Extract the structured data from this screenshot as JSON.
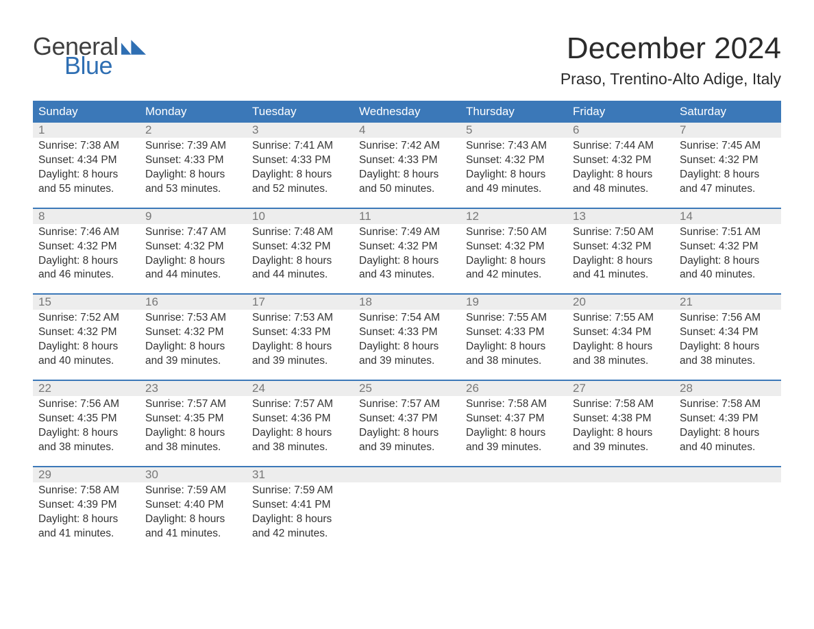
{
  "brand": {
    "word1": "General",
    "word2": "Blue",
    "primary_color": "#2f6fb3",
    "text_color": "#3f3f3f"
  },
  "title": "December 2024",
  "location": "Praso, Trentino-Alto Adige, Italy",
  "colors": {
    "header_bg": "#3b78b8",
    "header_fg": "#ffffff",
    "band_bg": "#ededed",
    "daynum_fg": "#777777",
    "body_fg": "#333333",
    "rule": "#3b78b8"
  },
  "typography": {
    "title_pt": 44,
    "location_pt": 23,
    "dayhead_pt": 17,
    "daynum_pt": 17,
    "body_pt": 15.5,
    "logo_pt": 36
  },
  "dayheads": [
    "Sunday",
    "Monday",
    "Tuesday",
    "Wednesday",
    "Thursday",
    "Friday",
    "Saturday"
  ],
  "weeks": [
    [
      {
        "n": "1",
        "sunrise": "7:38 AM",
        "sunset": "4:34 PM",
        "dl1": "Daylight: 8 hours",
        "dl2": "and 55 minutes."
      },
      {
        "n": "2",
        "sunrise": "7:39 AM",
        "sunset": "4:33 PM",
        "dl1": "Daylight: 8 hours",
        "dl2": "and 53 minutes."
      },
      {
        "n": "3",
        "sunrise": "7:41 AM",
        "sunset": "4:33 PM",
        "dl1": "Daylight: 8 hours",
        "dl2": "and 52 minutes."
      },
      {
        "n": "4",
        "sunrise": "7:42 AM",
        "sunset": "4:33 PM",
        "dl1": "Daylight: 8 hours",
        "dl2": "and 50 minutes."
      },
      {
        "n": "5",
        "sunrise": "7:43 AM",
        "sunset": "4:32 PM",
        "dl1": "Daylight: 8 hours",
        "dl2": "and 49 minutes."
      },
      {
        "n": "6",
        "sunrise": "7:44 AM",
        "sunset": "4:32 PM",
        "dl1": "Daylight: 8 hours",
        "dl2": "and 48 minutes."
      },
      {
        "n": "7",
        "sunrise": "7:45 AM",
        "sunset": "4:32 PM",
        "dl1": "Daylight: 8 hours",
        "dl2": "and 47 minutes."
      }
    ],
    [
      {
        "n": "8",
        "sunrise": "7:46 AM",
        "sunset": "4:32 PM",
        "dl1": "Daylight: 8 hours",
        "dl2": "and 46 minutes."
      },
      {
        "n": "9",
        "sunrise": "7:47 AM",
        "sunset": "4:32 PM",
        "dl1": "Daylight: 8 hours",
        "dl2": "and 44 minutes."
      },
      {
        "n": "10",
        "sunrise": "7:48 AM",
        "sunset": "4:32 PM",
        "dl1": "Daylight: 8 hours",
        "dl2": "and 44 minutes."
      },
      {
        "n": "11",
        "sunrise": "7:49 AM",
        "sunset": "4:32 PM",
        "dl1": "Daylight: 8 hours",
        "dl2": "and 43 minutes."
      },
      {
        "n": "12",
        "sunrise": "7:50 AM",
        "sunset": "4:32 PM",
        "dl1": "Daylight: 8 hours",
        "dl2": "and 42 minutes."
      },
      {
        "n": "13",
        "sunrise": "7:50 AM",
        "sunset": "4:32 PM",
        "dl1": "Daylight: 8 hours",
        "dl2": "and 41 minutes."
      },
      {
        "n": "14",
        "sunrise": "7:51 AM",
        "sunset": "4:32 PM",
        "dl1": "Daylight: 8 hours",
        "dl2": "and 40 minutes."
      }
    ],
    [
      {
        "n": "15",
        "sunrise": "7:52 AM",
        "sunset": "4:32 PM",
        "dl1": "Daylight: 8 hours",
        "dl2": "and 40 minutes."
      },
      {
        "n": "16",
        "sunrise": "7:53 AM",
        "sunset": "4:32 PM",
        "dl1": "Daylight: 8 hours",
        "dl2": "and 39 minutes."
      },
      {
        "n": "17",
        "sunrise": "7:53 AM",
        "sunset": "4:33 PM",
        "dl1": "Daylight: 8 hours",
        "dl2": "and 39 minutes."
      },
      {
        "n": "18",
        "sunrise": "7:54 AM",
        "sunset": "4:33 PM",
        "dl1": "Daylight: 8 hours",
        "dl2": "and 39 minutes."
      },
      {
        "n": "19",
        "sunrise": "7:55 AM",
        "sunset": "4:33 PM",
        "dl1": "Daylight: 8 hours",
        "dl2": "and 38 minutes."
      },
      {
        "n": "20",
        "sunrise": "7:55 AM",
        "sunset": "4:34 PM",
        "dl1": "Daylight: 8 hours",
        "dl2": "and 38 minutes."
      },
      {
        "n": "21",
        "sunrise": "7:56 AM",
        "sunset": "4:34 PM",
        "dl1": "Daylight: 8 hours",
        "dl2": "and 38 minutes."
      }
    ],
    [
      {
        "n": "22",
        "sunrise": "7:56 AM",
        "sunset": "4:35 PM",
        "dl1": "Daylight: 8 hours",
        "dl2": "and 38 minutes."
      },
      {
        "n": "23",
        "sunrise": "7:57 AM",
        "sunset": "4:35 PM",
        "dl1": "Daylight: 8 hours",
        "dl2": "and 38 minutes."
      },
      {
        "n": "24",
        "sunrise": "7:57 AM",
        "sunset": "4:36 PM",
        "dl1": "Daylight: 8 hours",
        "dl2": "and 38 minutes."
      },
      {
        "n": "25",
        "sunrise": "7:57 AM",
        "sunset": "4:37 PM",
        "dl1": "Daylight: 8 hours",
        "dl2": "and 39 minutes."
      },
      {
        "n": "26",
        "sunrise": "7:58 AM",
        "sunset": "4:37 PM",
        "dl1": "Daylight: 8 hours",
        "dl2": "and 39 minutes."
      },
      {
        "n": "27",
        "sunrise": "7:58 AM",
        "sunset": "4:38 PM",
        "dl1": "Daylight: 8 hours",
        "dl2": "and 39 minutes."
      },
      {
        "n": "28",
        "sunrise": "7:58 AM",
        "sunset": "4:39 PM",
        "dl1": "Daylight: 8 hours",
        "dl2": "and 40 minutes."
      }
    ],
    [
      {
        "n": "29",
        "sunrise": "7:58 AM",
        "sunset": "4:39 PM",
        "dl1": "Daylight: 8 hours",
        "dl2": "and 41 minutes."
      },
      {
        "n": "30",
        "sunrise": "7:59 AM",
        "sunset": "4:40 PM",
        "dl1": "Daylight: 8 hours",
        "dl2": "and 41 minutes."
      },
      {
        "n": "31",
        "sunrise": "7:59 AM",
        "sunset": "4:41 PM",
        "dl1": "Daylight: 8 hours",
        "dl2": "and 42 minutes."
      },
      null,
      null,
      null,
      null
    ]
  ],
  "labels": {
    "sunrise_prefix": "Sunrise: ",
    "sunset_prefix": "Sunset: "
  }
}
